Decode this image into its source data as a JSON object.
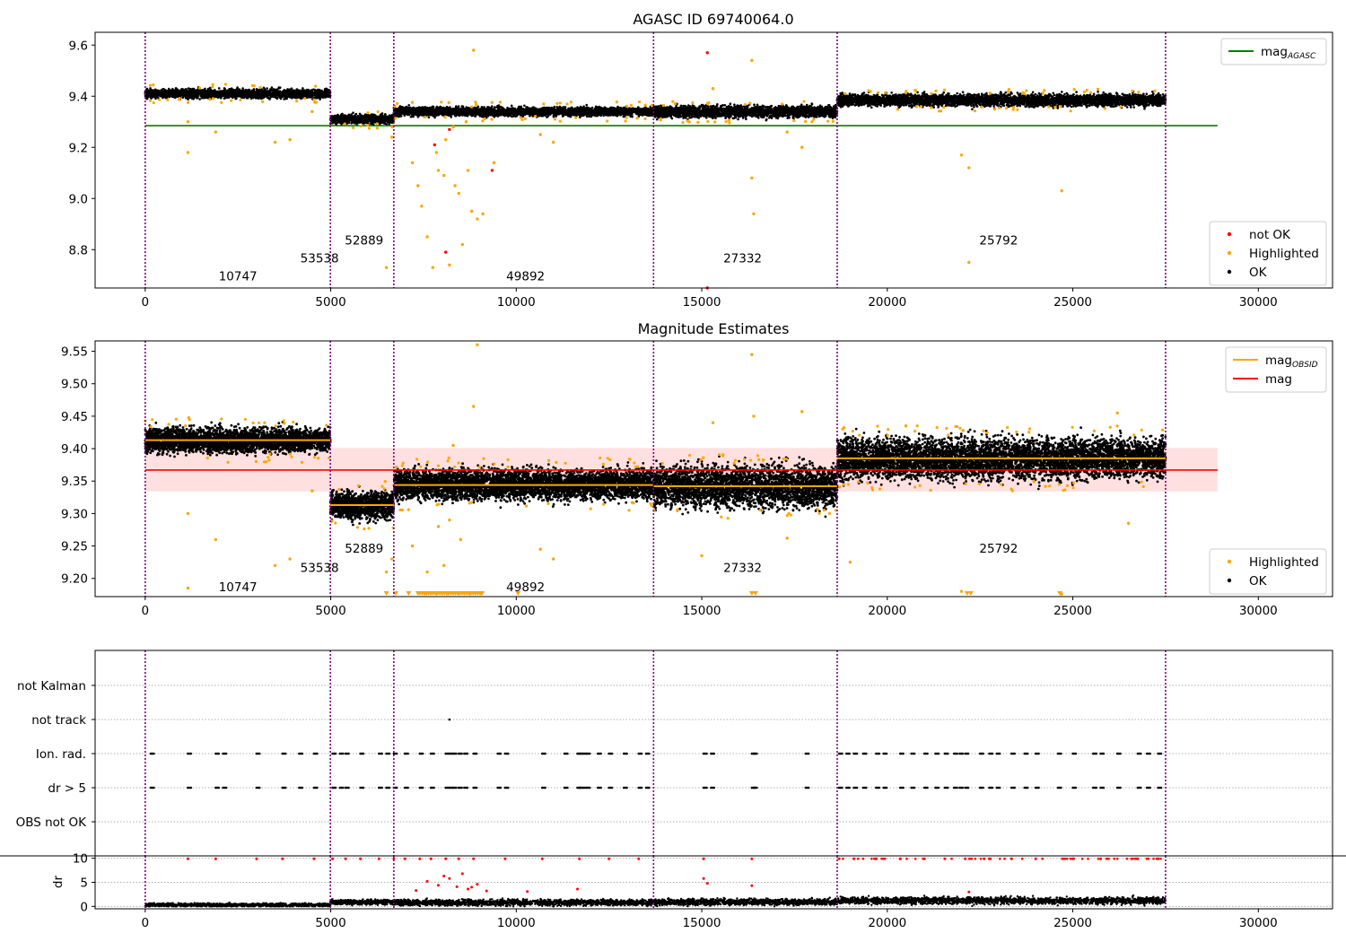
{
  "chart_data": [
    {
      "type": "scatter",
      "title": "AGASC ID 69740064.0",
      "xlim": [
        -1350,
        32000
      ],
      "ylim": [
        8.65,
        9.65
      ],
      "xticks": [
        0,
        5000,
        10000,
        15000,
        20000,
        25000,
        30000
      ],
      "yticks": [
        8.8,
        9.0,
        9.2,
        9.4,
        9.6
      ],
      "xtick_labels": [
        "0",
        "5000",
        "10000",
        "15000",
        "20000",
        "25000",
        "30000"
      ],
      "ytick_labels": [
        "8.8",
        "9.0",
        "9.2",
        "9.4",
        "9.6"
      ],
      "reference_line": {
        "label": "mag",
        "label_sub": "AGASC",
        "y": 9.285,
        "x_end": 28900,
        "color": "#008000"
      },
      "legend_top": [
        {
          "label": "mag",
          "sub": "AGASC",
          "color": "#008000",
          "kind": "line"
        }
      ],
      "legend_bottom": [
        {
          "label": "not OK",
          "color": "#ff0000",
          "kind": "dot"
        },
        {
          "label": "Highlighted",
          "color": "#ffa500",
          "kind": "dot"
        },
        {
          "label": "OK",
          "color": "#000000",
          "kind": "dot"
        }
      ],
      "obsid_boundaries": [
        0,
        4990,
        6700,
        13700,
        18650,
        27500
      ],
      "obsid_labels": [
        {
          "text": "10747",
          "x": 2500,
          "y": 8.68
        },
        {
          "text": "53538",
          "x": 4700,
          "y": 8.75
        },
        {
          "text": "52889",
          "x": 5900,
          "y": 8.82
        },
        {
          "text": "49892",
          "x": 10250,
          "y": 8.68
        },
        {
          "text": "27332",
          "x": 16100,
          "y": 8.75
        },
        {
          "text": "25792",
          "x": 23000,
          "y": 8.82
        }
      ],
      "segments": [
        {
          "x": [
            0,
            4990
          ],
          "mean": 9.41,
          "spread": 0.012
        },
        {
          "x": [
            4990,
            6700
          ],
          "mean": 9.31,
          "spread": 0.012
        },
        {
          "x": [
            6700,
            13700
          ],
          "mean": 9.34,
          "spread": 0.012
        },
        {
          "x": [
            13700,
            18650
          ],
          "mean": 9.34,
          "spread": 0.016
        },
        {
          "x": [
            18650,
            27500
          ],
          "mean": 9.385,
          "spread": 0.016
        }
      ],
      "highlighted_points": [
        [
          1150,
          9.18
        ],
        [
          1150,
          9.3
        ],
        [
          1900,
          9.26
        ],
        [
          3500,
          9.22
        ],
        [
          3900,
          9.23
        ],
        [
          4500,
          9.34
        ],
        [
          6500,
          8.73
        ],
        [
          6650,
          9.24
        ],
        [
          7200,
          9.14
        ],
        [
          7350,
          9.05
        ],
        [
          7450,
          8.97
        ],
        [
          7600,
          8.85
        ],
        [
          7750,
          8.73
        ],
        [
          7900,
          9.11
        ],
        [
          8050,
          9.09
        ],
        [
          8200,
          8.74
        ],
        [
          8350,
          9.05
        ],
        [
          8450,
          9.02
        ],
        [
          8550,
          8.82
        ],
        [
          8700,
          9.11
        ],
        [
          8800,
          8.95
        ],
        [
          8850,
          9.58
        ],
        [
          8950,
          8.92
        ],
        [
          9100,
          8.94
        ],
        [
          9400,
          9.14
        ],
        [
          8300,
          9.28
        ],
        [
          7850,
          9.18
        ],
        [
          8100,
          9.23
        ],
        [
          8650,
          9.3
        ],
        [
          16350,
          9.08
        ],
        [
          16400,
          8.94
        ],
        [
          16350,
          9.54
        ],
        [
          15300,
          9.43
        ],
        [
          22000,
          9.17
        ],
        [
          22200,
          9.12
        ],
        [
          22200,
          8.75
        ],
        [
          24700,
          9.03
        ],
        [
          17700,
          9.2
        ],
        [
          17300,
          9.26
        ],
        [
          11000,
          9.22
        ],
        [
          10650,
          9.25
        ]
      ],
      "notok_points": [
        [
          15150,
          9.57
        ],
        [
          9350,
          9.11
        ],
        [
          8100,
          8.79
        ],
        [
          7800,
          9.21
        ],
        [
          15150,
          8.65
        ],
        [
          8200,
          9.27
        ]
      ]
    },
    {
      "type": "scatter",
      "title": "Magnitude Estimates",
      "xlim": [
        -1350,
        32000
      ],
      "ylim": [
        9.172,
        9.566
      ],
      "xticks": [
        0,
        5000,
        10000,
        15000,
        20000,
        25000,
        30000
      ],
      "yticks": [
        9.2,
        9.25,
        9.3,
        9.35,
        9.4,
        9.45,
        9.5,
        9.55
      ],
      "xtick_labels": [
        "0",
        "5000",
        "10000",
        "15000",
        "20000",
        "25000",
        "30000"
      ],
      "ytick_labels": [
        "9.20",
        "9.25",
        "9.30",
        "9.35",
        "9.40",
        "9.45",
        "9.50",
        "9.55"
      ],
      "mag_line": {
        "y": 9.367,
        "band": [
          9.334,
          9.401
        ],
        "x_end": 28900,
        "color": "#ff0000"
      },
      "obsid_mag_steps": [
        {
          "x": [
            0,
            4990
          ],
          "y": 9.413
        },
        {
          "x": [
            4990,
            6700
          ],
          "y": 9.313
        },
        {
          "x": [
            6700,
            13700
          ],
          "y": 9.344
        },
        {
          "x": [
            13700,
            18650
          ],
          "y": 9.342
        },
        {
          "x": [
            18650,
            27500
          ],
          "y": 9.385
        }
      ],
      "legend": [
        {
          "label": "mag",
          "sub": "OBSID",
          "color": "#ffa500",
          "kind": "line"
        },
        {
          "label": "mag",
          "sub": "",
          "color": "#ff0000",
          "kind": "line"
        }
      ],
      "legend_bottom": [
        {
          "label": "Highlighted",
          "color": "#ffa500",
          "kind": "dot"
        },
        {
          "label": "OK",
          "color": "#000000",
          "kind": "dot"
        }
      ],
      "obsid_labels": [
        {
          "text": "10747",
          "x": 2500,
          "y": 9.18
        },
        {
          "text": "53538",
          "x": 4700,
          "y": 9.21
        },
        {
          "text": "52889",
          "x": 5900,
          "y": 9.24
        },
        {
          "text": "49892",
          "x": 10250,
          "y": 9.18
        },
        {
          "text": "27332",
          "x": 16100,
          "y": 9.21
        },
        {
          "text": "25792",
          "x": 23000,
          "y": 9.24
        }
      ],
      "segments": [
        {
          "x": [
            0,
            4990
          ],
          "mean": 9.413,
          "spread": 0.013
        },
        {
          "x": [
            4990,
            6700
          ],
          "mean": 9.313,
          "spread": 0.015
        },
        {
          "x": [
            6700,
            13700
          ],
          "mean": 9.345,
          "spread": 0.016
        },
        {
          "x": [
            13700,
            18650
          ],
          "mean": 9.342,
          "spread": 0.022
        },
        {
          "x": [
            18650,
            27500
          ],
          "mean": 9.385,
          "spread": 0.022
        }
      ],
      "highlighted_points": [
        [
          1150,
          9.185
        ],
        [
          1150,
          9.3
        ],
        [
          1900,
          9.26
        ],
        [
          3500,
          9.22
        ],
        [
          3900,
          9.23
        ],
        [
          4500,
          9.335
        ],
        [
          6500,
          9.21
        ],
        [
          6650,
          9.23
        ],
        [
          8850,
          9.465
        ],
        [
          8950,
          9.56
        ],
        [
          8300,
          9.405
        ],
        [
          16350,
          9.545
        ],
        [
          16400,
          9.45
        ],
        [
          15300,
          9.44
        ],
        [
          17700,
          9.457
        ],
        [
          22000,
          9.18
        ],
        [
          24700,
          9.176
        ],
        [
          26200,
          9.455
        ],
        [
          10650,
          9.245
        ],
        [
          11000,
          9.23
        ],
        [
          15000,
          9.235
        ],
        [
          17300,
          9.262
        ],
        [
          7200,
          9.25
        ],
        [
          7600,
          9.21
        ],
        [
          8050,
          9.22
        ],
        [
          8500,
          9.26
        ],
        [
          7900,
          9.28
        ],
        [
          8200,
          9.29
        ],
        [
          26500,
          9.285
        ],
        [
          20500,
          9.435
        ],
        [
          19000,
          9.225
        ]
      ],
      "clipped_x": [
        6500,
        6750,
        7100,
        7350,
        7550,
        7700,
        7850,
        8000,
        8150,
        8300,
        8450,
        8600,
        8750,
        8900,
        9050,
        10050,
        16350,
        16450,
        22150,
        22250,
        24650
      ]
    },
    {
      "type": "scatter",
      "title": "",
      "xlim": [
        -1350,
        32000
      ],
      "categories": [
        "not Kalman",
        "not track",
        "Ion. rad.",
        "dr > 5",
        "OBS not OK"
      ],
      "flag_points": {
        "not Kalman": [],
        "not track": [
          8200
        ],
        "Ion. rad.": [
          150,
          1150,
          1900,
          2100,
          3000,
          3700,
          4150,
          4550,
          5050,
          5250,
          5400,
          5800,
          6300,
          6500,
          6700,
          7000,
          7400,
          7700,
          8100,
          8200,
          8300,
          8450,
          8600,
          8850,
          9500,
          9700,
          10700,
          11300,
          11650,
          11700,
          11800,
          11900,
          12200,
          12500,
          12900,
          13300,
          13500,
          15050,
          15250,
          16350,
          16400,
          17800,
          18700,
          18900,
          19100,
          19350,
          19700,
          19900,
          20350,
          20650,
          21000,
          21300,
          21550,
          21800,
          21950,
          22100,
          22500,
          22750,
          22950,
          23350,
          23700,
          24000,
          24600,
          25000,
          25550,
          25750,
          26200,
          26750,
          27000,
          27300
        ],
        "dr > 5": [
          150,
          1150,
          1900,
          2100,
          3000,
          3700,
          4150,
          4550,
          5050,
          5250,
          5400,
          5800,
          6300,
          6500,
          6700,
          7000,
          7400,
          7700,
          8100,
          8200,
          8300,
          8450,
          8600,
          8850,
          9500,
          9700,
          10700,
          11300,
          11650,
          11700,
          11800,
          11900,
          12200,
          12500,
          12900,
          13300,
          13500,
          15050,
          15250,
          16350,
          16400,
          17800,
          18700,
          18900,
          19100,
          19350,
          19700,
          19900,
          20350,
          20650,
          21000,
          21300,
          21550,
          21800,
          21950,
          22100,
          22500,
          22750,
          22950,
          23350,
          23700,
          24000,
          24600,
          25000,
          25550,
          25750,
          26200,
          26750,
          27000,
          27300
        ],
        "OBS not OK": []
      }
    },
    {
      "type": "scatter",
      "title": "",
      "xlim": [
        -1350,
        32000
      ],
      "ylim": [
        -0.5,
        10.5
      ],
      "yticks": [
        0,
        5,
        10
      ],
      "ytick_labels": [
        "0",
        "5",
        "10"
      ],
      "xticks": [
        0,
        5000,
        10000,
        15000,
        20000,
        25000,
        30000
      ],
      "xtick_labels": [
        "0",
        "5000",
        "10000",
        "15000",
        "20000",
        "25000",
        "30000"
      ],
      "ylabel": "dr",
      "segments": [
        {
          "x": [
            0,
            4990
          ],
          "mean": 0.3,
          "spread": 0.25
        },
        {
          "x": [
            4990,
            6700
          ],
          "mean": 0.9,
          "spread": 0.4
        },
        {
          "x": [
            6700,
            13700
          ],
          "mean": 0.8,
          "spread": 0.45
        },
        {
          "x": [
            13700,
            18650
          ],
          "mean": 0.9,
          "spread": 0.45
        },
        {
          "x": [
            18650,
            27500
          ],
          "mean": 1.2,
          "spread": 0.5
        }
      ],
      "large_dr_points": [
        [
          1150,
          9.9
        ],
        [
          1900,
          9.9
        ],
        [
          3000,
          9.9
        ],
        [
          3700,
          9.9
        ],
        [
          4550,
          9.9
        ],
        [
          5050,
          9.9
        ],
        [
          5400,
          9.9
        ],
        [
          5800,
          9.9
        ],
        [
          6300,
          9.9
        ],
        [
          6700,
          9.9
        ],
        [
          7000,
          9.9
        ],
        [
          7400,
          9.9
        ],
        [
          7700,
          9.9
        ],
        [
          8100,
          9.9
        ],
        [
          8450,
          9.9
        ],
        [
          8850,
          9.9
        ],
        [
          9700,
          9.9
        ],
        [
          10700,
          9.9
        ],
        [
          11700,
          9.9
        ],
        [
          12500,
          9.9
        ],
        [
          13300,
          9.9
        ],
        [
          15050,
          9.9
        ],
        [
          16350,
          9.9
        ],
        [
          18700,
          9.9
        ],
        [
          19100,
          9.9
        ],
        [
          19700,
          9.9
        ],
        [
          20350,
          9.9
        ],
        [
          21000,
          9.9
        ],
        [
          21550,
          9.9
        ],
        [
          22100,
          9.9
        ],
        [
          22750,
          9.9
        ],
        [
          23350,
          9.9
        ],
        [
          24000,
          9.9
        ],
        [
          25000,
          9.9
        ],
        [
          25750,
          9.9
        ],
        [
          26750,
          9.9
        ],
        [
          27300,
          9.9
        ],
        [
          7600,
          5.2
        ],
        [
          7900,
          4.4
        ],
        [
          8050,
          6.3
        ],
        [
          8200,
          5.8
        ],
        [
          8400,
          4.1
        ],
        [
          8550,
          6.8
        ],
        [
          8700,
          3.6
        ],
        [
          8950,
          4.6
        ],
        [
          15050,
          5.8
        ],
        [
          15150,
          4.8
        ],
        [
          16350,
          4.3
        ],
        [
          11650,
          3.6
        ],
        [
          22200,
          3.0
        ],
        [
          7300,
          3.3
        ],
        [
          8800,
          4.0
        ],
        [
          9200,
          3.2
        ],
        [
          10300,
          3.1
        ]
      ],
      "markers": {
        "ok": "#000000",
        "bad": "#ff0000"
      }
    }
  ]
}
